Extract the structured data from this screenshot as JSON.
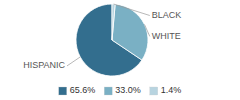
{
  "chart_data": {
    "type": "pie",
    "categories": [
      "HISPANIC",
      "WHITE",
      "BLACK"
    ],
    "values": [
      65.6,
      33.0,
      1.4
    ],
    "value_labels": [
      "65.6%",
      "33.0%",
      "1.4%"
    ],
    "colors": [
      "#336e8e",
      "#7ab0c4",
      "#b8d4e0"
    ],
    "legend": "bottom"
  }
}
